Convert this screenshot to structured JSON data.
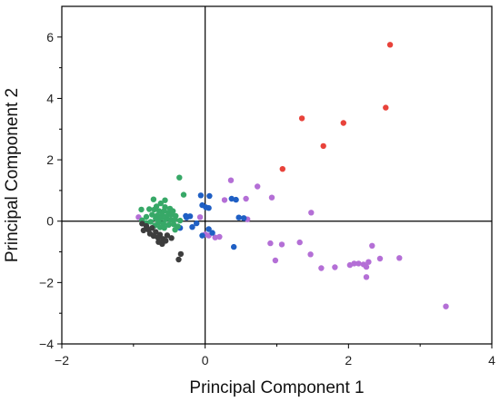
{
  "chart_data": {
    "type": "scatter",
    "title": "",
    "xlabel": "Principal Component 1",
    "ylabel": "Principal Component 2",
    "xlim": [
      -2,
      4
    ],
    "ylim": [
      -4,
      7
    ],
    "x_ticks": [
      -2,
      0,
      2,
      4
    ],
    "y_ticks": [
      -4,
      -2,
      0,
      2,
      4,
      6
    ],
    "x_tick_labels": [
      "−2",
      "0",
      "2",
      "4"
    ],
    "y_tick_labels": [
      "−4",
      "−2",
      "0",
      "2",
      "4",
      "6"
    ],
    "zero_lines": true,
    "grid": false,
    "series": [
      {
        "color": "#e8423a",
        "points": [
          [
            2.58,
            5.75
          ],
          [
            2.52,
            3.7
          ],
          [
            1.35,
            3.35
          ],
          [
            1.93,
            3.2
          ],
          [
            1.65,
            2.45
          ],
          [
            1.08,
            1.7
          ]
        ]
      },
      {
        "color": "#b46fd6",
        "points": [
          [
            0.36,
            1.33
          ],
          [
            0.73,
            1.13
          ],
          [
            0.93,
            0.77
          ],
          [
            0.57,
            0.73
          ],
          [
            0.27,
            0.69
          ],
          [
            1.48,
            0.28
          ],
          [
            0.59,
            0.06
          ],
          [
            0.05,
            -0.47
          ],
          [
            0.14,
            -0.53
          ],
          [
            0.91,
            -0.72
          ],
          [
            1.07,
            -0.76
          ],
          [
            1.32,
            -0.69
          ],
          [
            0.98,
            -1.28
          ],
          [
            1.47,
            -1.08
          ],
          [
            1.62,
            -1.53
          ],
          [
            2.02,
            -1.43
          ],
          [
            2.08,
            -1.38
          ],
          [
            2.14,
            -1.38
          ],
          [
            2.21,
            -1.41
          ],
          [
            2.25,
            -1.49
          ],
          [
            2.25,
            -1.82
          ],
          [
            2.33,
            -0.8
          ],
          [
            2.28,
            -1.33
          ],
          [
            2.44,
            -1.22
          ],
          [
            2.71,
            -1.2
          ],
          [
            3.36,
            -2.78
          ],
          [
            1.81,
            -1.5
          ],
          [
            0.2,
            -0.51
          ],
          [
            0.0,
            -0.43
          ],
          [
            -0.07,
            0.13
          ],
          [
            -0.93,
            0.13
          ]
        ]
      },
      {
        "color": "#1f5fc4",
        "points": [
          [
            -0.06,
            0.84
          ],
          [
            0.06,
            0.82
          ],
          [
            0.37,
            0.73
          ],
          [
            0.43,
            0.7
          ],
          [
            -0.04,
            0.52
          ],
          [
            0.01,
            0.45
          ],
          [
            0.05,
            0.43
          ],
          [
            -0.26,
            0.12
          ],
          [
            -0.21,
            0.16
          ],
          [
            -0.12,
            -0.07
          ],
          [
            -0.18,
            -0.19
          ],
          [
            0.05,
            -0.26
          ],
          [
            0.1,
            -0.38
          ],
          [
            0.47,
            0.12
          ],
          [
            0.54,
            0.1
          ],
          [
            0.4,
            -0.84
          ],
          [
            -0.27,
            0.17
          ],
          [
            -0.35,
            -0.22
          ],
          [
            -0.04,
            -0.47
          ]
        ]
      },
      {
        "color": "#37a867",
        "points": [
          [
            -0.36,
            1.42
          ],
          [
            -0.3,
            0.86
          ],
          [
            -0.56,
            0.68
          ],
          [
            -0.62,
            0.58
          ],
          [
            -0.72,
            0.71
          ],
          [
            -0.89,
            0.38
          ],
          [
            -0.78,
            0.39
          ],
          [
            -0.71,
            0.38
          ],
          [
            -0.64,
            0.33
          ],
          [
            -0.57,
            0.34
          ],
          [
            -0.51,
            0.28
          ],
          [
            -0.45,
            0.33
          ],
          [
            -0.74,
            0.21
          ],
          [
            -0.67,
            0.18
          ],
          [
            -0.6,
            0.2
          ],
          [
            -0.53,
            0.17
          ],
          [
            -0.47,
            0.21
          ],
          [
            -0.41,
            0.17
          ],
          [
            -0.82,
            0.14
          ],
          [
            -0.69,
            0.08
          ],
          [
            -0.62,
            0.09
          ],
          [
            -0.55,
            0.06
          ],
          [
            -0.48,
            0.04
          ],
          [
            -0.42,
            0.06
          ],
          [
            -0.35,
            0.02
          ],
          [
            -0.76,
            -0.02
          ],
          [
            -0.65,
            -0.04
          ],
          [
            -0.58,
            -0.08
          ],
          [
            -0.51,
            -0.12
          ],
          [
            -0.44,
            -0.1
          ],
          [
            -0.38,
            -0.17
          ],
          [
            -0.7,
            -0.14
          ],
          [
            -0.63,
            -0.2
          ],
          [
            -0.56,
            0.46
          ],
          [
            -0.49,
            0.41
          ],
          [
            -0.68,
            0.48
          ],
          [
            -0.88,
            0.03
          ],
          [
            -0.82,
            -0.06
          ],
          [
            -0.57,
            -0.22
          ],
          [
            -0.42,
            -0.28
          ]
        ]
      },
      {
        "color": "#3d3d3d",
        "points": [
          [
            -0.88,
            -0.08
          ],
          [
            -0.82,
            -0.16
          ],
          [
            -0.79,
            -0.28
          ],
          [
            -0.74,
            -0.22
          ],
          [
            -0.69,
            -0.35
          ],
          [
            -0.63,
            -0.44
          ],
          [
            -0.66,
            -0.53
          ],
          [
            -0.72,
            -0.48
          ],
          [
            -0.59,
            -0.58
          ],
          [
            -0.53,
            -0.46
          ],
          [
            -0.77,
            -0.41
          ],
          [
            -0.86,
            -0.3
          ],
          [
            -0.34,
            -1.07
          ],
          [
            -0.37,
            -1.25
          ],
          [
            -0.6,
            -0.74
          ],
          [
            -0.55,
            -0.64
          ],
          [
            -0.65,
            -0.68
          ],
          [
            -0.47,
            -0.55
          ]
        ]
      }
    ]
  }
}
